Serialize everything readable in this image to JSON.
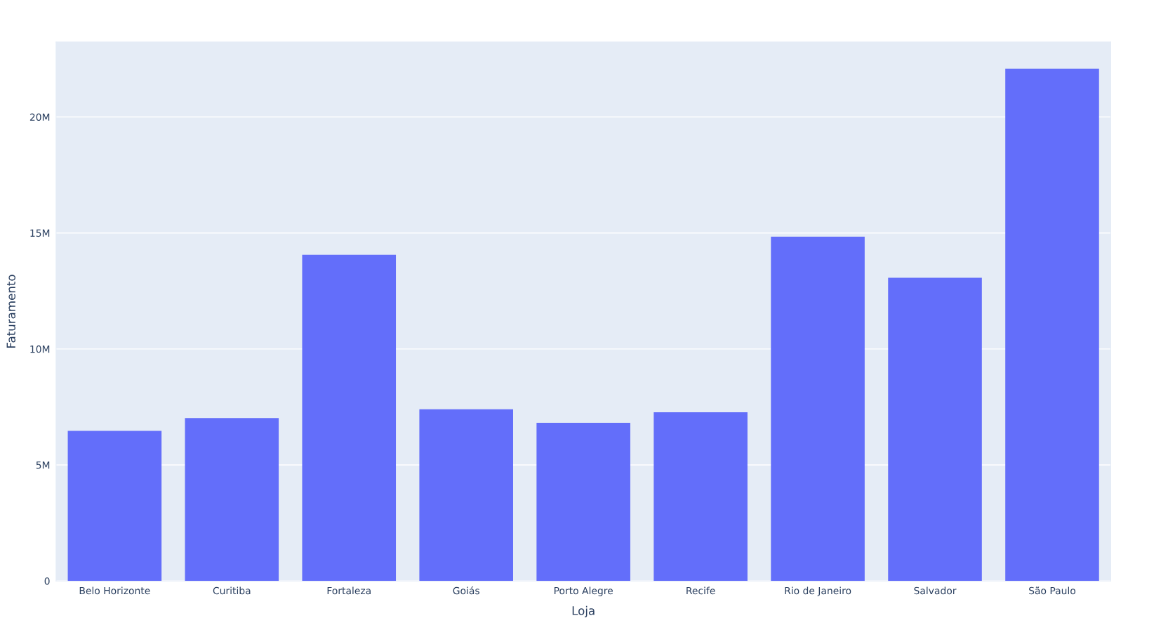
{
  "chart_data": {
    "type": "bar",
    "xlabel": "Loja",
    "ylabel": "Faturamento",
    "categories": [
      "Belo Horizonte",
      "Curitiba",
      "Fortaleza",
      "Goiás",
      "Porto Alegre",
      "Recife",
      "Rio de Janeiro",
      "Salvador",
      "São Paulo"
    ],
    "values": [
      6470000,
      7020000,
      14060000,
      7400000,
      6820000,
      7270000,
      14840000,
      13070000,
      22080000
    ],
    "color": "#636efa",
    "ylim": [
      0,
      23230000
    ],
    "yticks": [
      0,
      {
        "value": 5000000,
        "label": "5M"
      },
      {
        "value": 10000000,
        "label": "10M"
      },
      {
        "value": 15000000,
        "label": "15M"
      },
      {
        "value": 20000000,
        "label": "20M"
      }
    ],
    "grid": "y"
  }
}
